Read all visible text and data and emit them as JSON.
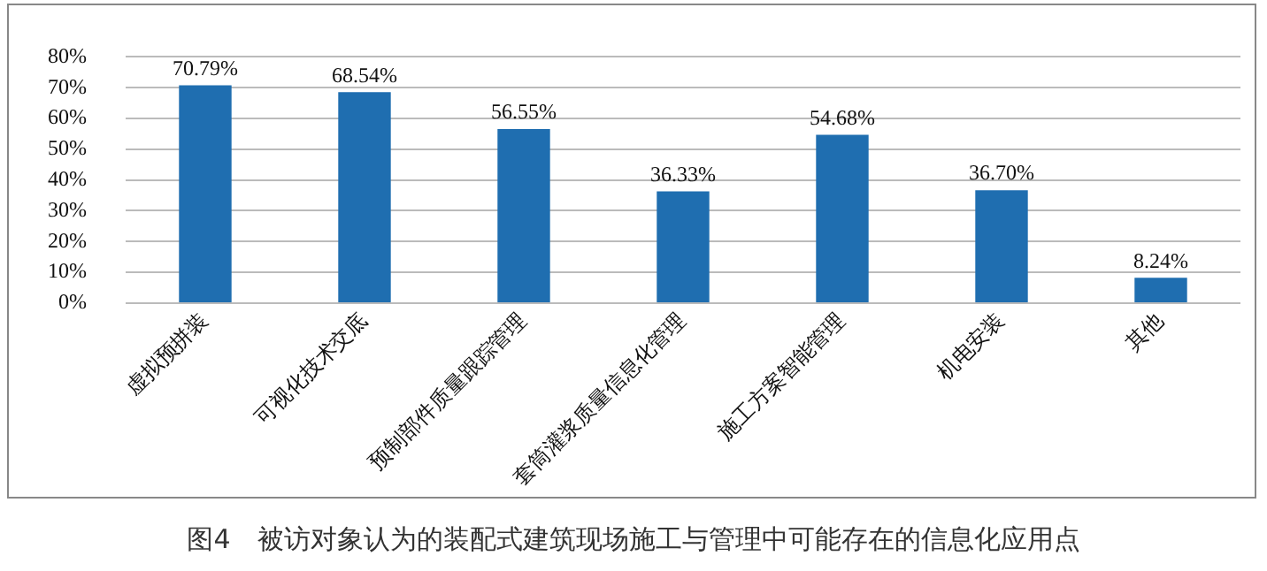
{
  "chart_data": {
    "type": "bar",
    "title": "图4　被访对象认为的装配式建筑现场施工与管理中可能存在的信息化应用点",
    "categories": [
      "虚拟预拼装",
      "可视化技术交底",
      "预制部件质量跟踪管理",
      "套筒灌浆质量信息化管理",
      "施工方案智能管理",
      "机电安装",
      "其他"
    ],
    "values": [
      70.79,
      68.54,
      56.55,
      36.33,
      54.68,
      36.7,
      8.24
    ],
    "value_labels": [
      "70.79%",
      "68.54%",
      "56.55%",
      "36.33%",
      "54.68%",
      "36.70%",
      "8.24%"
    ],
    "color": "#1f6eb0",
    "ylim": [
      0,
      80
    ],
    "yticks": [
      {
        "value": 0,
        "label": "0%"
      },
      {
        "value": 10,
        "label": "10%"
      },
      {
        "value": 20,
        "label": "20%"
      },
      {
        "value": 30,
        "label": "30%"
      },
      {
        "value": 40,
        "label": "40%"
      },
      {
        "value": 50,
        "label": "50%"
      },
      {
        "value": 60,
        "label": "60%"
      },
      {
        "value": 70,
        "label": "70%"
      },
      {
        "value": 80,
        "label": "80%"
      }
    ],
    "grid": "y",
    "legend": false
  }
}
